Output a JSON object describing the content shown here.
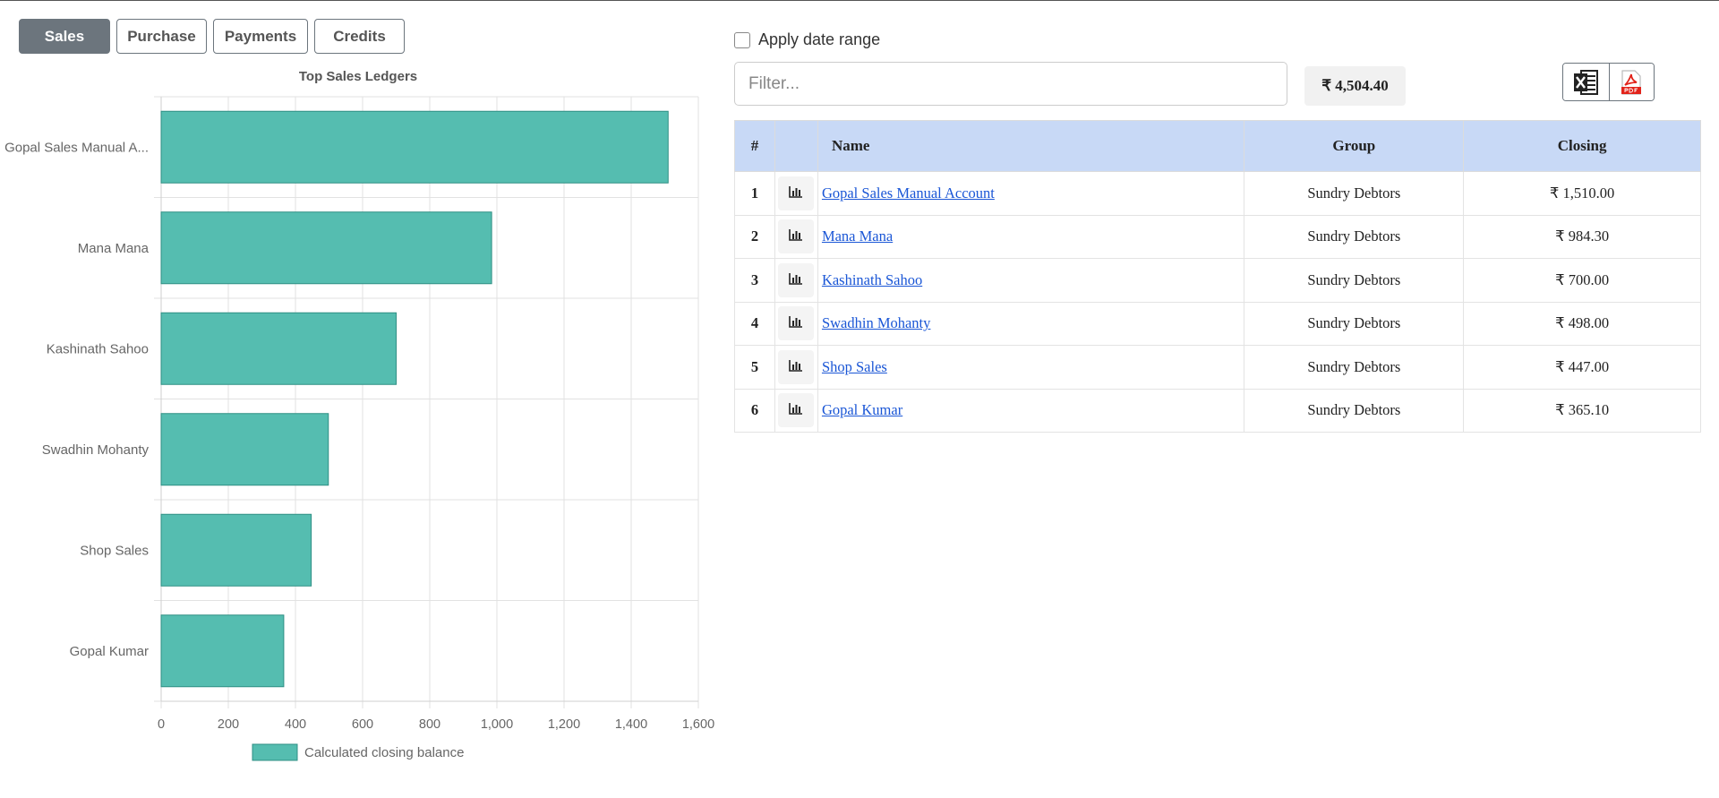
{
  "tabs": [
    {
      "label": "Sales",
      "active": true
    },
    {
      "label": "Purchase",
      "active": false
    },
    {
      "label": "Payments",
      "active": false
    },
    {
      "label": "Credits",
      "active": false
    }
  ],
  "colors": {
    "bar_fill": "#55bdb0",
    "bar_stroke": "#2f8f84",
    "header_bg": "#c8d9f6",
    "link": "#1a56d6",
    "active_tab": "#6c757d"
  },
  "chart_data": {
    "type": "bar",
    "orientation": "horizontal",
    "title": "Top Sales Ledgers",
    "categories": [
      "Gopal Sales Manual A...",
      "Mana Mana",
      "Kashinath Sahoo",
      "Swadhin Mohanty",
      "Shop Sales",
      "Gopal Kumar"
    ],
    "series": [
      {
        "name": "Calculated closing balance",
        "values": [
          1510,
          984.3,
          700,
          498,
          447,
          365.1
        ]
      }
    ],
    "xlim": [
      0,
      1600
    ],
    "xticks": [
      "0",
      "200",
      "400",
      "600",
      "800",
      "1,000",
      "1,200",
      "1,400",
      "1,600"
    ],
    "grid": true,
    "legend": "bottom"
  },
  "date_range": {
    "label": "Apply date range",
    "checked": false
  },
  "filter": {
    "placeholder": "Filter...",
    "value": ""
  },
  "total": "₹ 4,504.40",
  "exports": [
    {
      "icon": "excel-icon"
    },
    {
      "icon": "pdf-icon"
    }
  ],
  "table": {
    "headers": {
      "num": "#",
      "icon": "",
      "name": "Name",
      "group": "Group",
      "closing": "Closing"
    },
    "rows": [
      {
        "num": "1",
        "name": "Gopal Sales Manual Account",
        "group": "Sundry Debtors",
        "closing": "₹ 1,510.00"
      },
      {
        "num": "2",
        "name": "Mana Mana",
        "group": "Sundry Debtors",
        "closing": "₹ 984.30"
      },
      {
        "num": "3",
        "name": "Kashinath Sahoo",
        "group": "Sundry Debtors",
        "closing": "₹ 700.00"
      },
      {
        "num": "4",
        "name": "Swadhin Mohanty",
        "group": "Sundry Debtors",
        "closing": "₹ 498.00"
      },
      {
        "num": "5",
        "name": "Shop Sales",
        "group": "Sundry Debtors",
        "closing": "₹ 447.00"
      },
      {
        "num": "6",
        "name": "Gopal Kumar",
        "group": "Sundry Debtors",
        "closing": "₹ 365.10"
      }
    ]
  }
}
